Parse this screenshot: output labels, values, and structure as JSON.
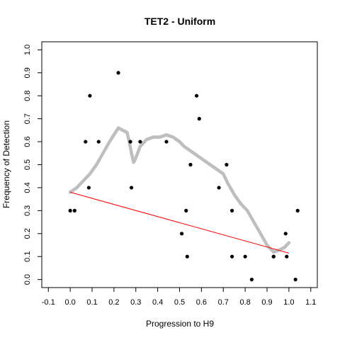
{
  "chart_data": {
    "type": "scatter",
    "title": "TET2 - Uniform",
    "xlabel": "Progression to H9",
    "ylabel": "Frequency of Detection",
    "xlim": [
      -0.13,
      1.13
    ],
    "ylim": [
      -0.035,
      1.035
    ],
    "x_ticks": [
      "-0.1",
      "0.0",
      "0.1",
      "0.2",
      "0.3",
      "0.4",
      "0.5",
      "0.6",
      "0.7",
      "0.8",
      "0.9",
      "1.0",
      "1.1"
    ],
    "y_ticks": [
      "0.0",
      "0.1",
      "0.2",
      "0.3",
      "0.4",
      "0.5",
      "0.6",
      "0.7",
      "0.8",
      "0.9",
      "1.0"
    ],
    "grid": false,
    "legend": false,
    "series": [
      {
        "kind": "points",
        "color": "#000000",
        "x": [
          0.0,
          0.02,
          0.07,
          0.085,
          0.09,
          0.13,
          0.22,
          0.275,
          0.28,
          0.32,
          0.44,
          0.51,
          0.53,
          0.535,
          0.55,
          0.578,
          0.59,
          0.68,
          0.715,
          0.74,
          0.74,
          0.8,
          0.83,
          0.93,
          0.93,
          0.985,
          0.99,
          1.03,
          1.04
        ],
        "y": [
          0.3,
          0.3,
          0.6,
          0.4,
          0.8,
          0.6,
          0.9,
          0.6,
          0.4,
          0.6,
          0.6,
          0.2,
          0.3,
          0.1,
          0.5,
          0.8,
          0.7,
          0.4,
          0.5,
          0.3,
          0.1,
          0.1,
          0.0,
          0.1,
          0.1,
          0.2,
          0.1,
          0.0,
          0.3
        ]
      },
      {
        "kind": "smooth",
        "color": "#bebebe",
        "x": [
          0.0,
          0.03,
          0.06,
          0.09,
          0.12,
          0.15,
          0.18,
          0.2,
          0.22,
          0.24,
          0.26,
          0.27,
          0.28,
          0.29,
          0.3,
          0.32,
          0.35,
          0.38,
          0.41,
          0.44,
          0.47,
          0.5,
          0.52,
          0.55,
          0.58,
          0.61,
          0.64,
          0.67,
          0.7,
          0.72,
          0.75,
          0.78,
          0.81,
          0.84,
          0.87,
          0.9,
          0.93,
          0.96,
          0.98,
          1.0
        ],
        "y": [
          0.38,
          0.4,
          0.43,
          0.46,
          0.5,
          0.55,
          0.6,
          0.63,
          0.66,
          0.65,
          0.64,
          0.6,
          0.55,
          0.51,
          0.53,
          0.58,
          0.61,
          0.62,
          0.62,
          0.63,
          0.62,
          0.6,
          0.58,
          0.56,
          0.54,
          0.52,
          0.5,
          0.48,
          0.46,
          0.42,
          0.37,
          0.33,
          0.3,
          0.25,
          0.2,
          0.15,
          0.12,
          0.13,
          0.14,
          0.16
        ]
      },
      {
        "kind": "regression",
        "color": "#ff0000",
        "x": [
          0.0,
          1.0
        ],
        "y": [
          0.38,
          0.115
        ]
      }
    ]
  }
}
